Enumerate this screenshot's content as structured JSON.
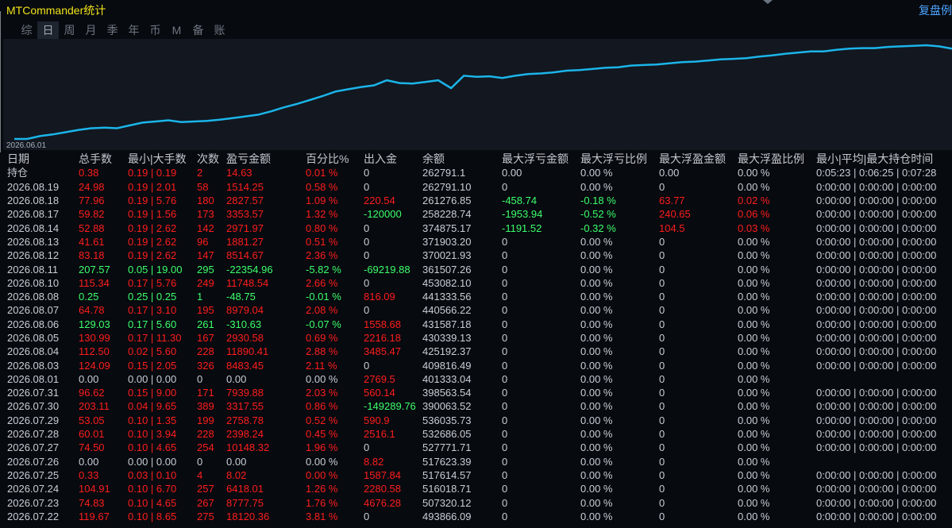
{
  "app": {
    "title": "MTCommander统计",
    "reset_label": "复盘例"
  },
  "tabs": [
    {
      "label": "综",
      "active": false
    },
    {
      "label": "日",
      "active": true
    },
    {
      "label": "周",
      "active": false
    },
    {
      "label": "月",
      "active": false
    },
    {
      "label": "季",
      "active": false
    },
    {
      "label": "年",
      "active": false
    },
    {
      "label": "币",
      "active": false
    },
    {
      "label": "M",
      "active": false
    },
    {
      "label": "备",
      "active": false
    },
    {
      "label": "账户",
      "active": false
    }
  ],
  "chart_data": {
    "type": "line",
    "x_start_label": "2026.06.01",
    "color": "#1bb5e9",
    "values": [
      0,
      0,
      5,
      8,
      12,
      16,
      19,
      20,
      19,
      24,
      29,
      31,
      33,
      30,
      31,
      32,
      34,
      37,
      40,
      43,
      49,
      56,
      62,
      69,
      76,
      84,
      88,
      92,
      95,
      97,
      99,
      98,
      101,
      104,
      109,
      112,
      110,
      111,
      108,
      112,
      115,
      116,
      118,
      121,
      122,
      124,
      126,
      127,
      130,
      131,
      132,
      134,
      136,
      137,
      139,
      141,
      142,
      143,
      146,
      148,
      151,
      153,
      155,
      155,
      158,
      160,
      161,
      161,
      163,
      164,
      165,
      166,
      164,
      160
    ],
    "spikes": [
      {
        "index": 29,
        "value": 104
      },
      {
        "index": 34,
        "value": 90
      }
    ]
  },
  "columns": [
    "日期",
    "总手数",
    "最小|大手数",
    "次数",
    "盈亏金额",
    "百分比%",
    "出入金",
    "余额",
    "最大浮亏金额",
    "最大浮亏比例",
    "最大浮盈金额",
    "最大浮盈比例",
    "最小|平均|最大持仓时间"
  ],
  "holding_row": {
    "label": "持仓",
    "cells": [
      {
        "t": "0.38",
        "c": "red"
      },
      {
        "t": "0.19 | 0.19",
        "c": "red"
      },
      {
        "t": "2",
        "c": "red"
      },
      {
        "t": "14.63",
        "c": "red"
      },
      {
        "t": "0.01 %",
        "c": "red"
      },
      {
        "t": "0",
        "c": "white"
      },
      {
        "t": "262791.1",
        "c": "white"
      },
      {
        "t": "0.00",
        "c": "white"
      },
      {
        "t": "0.00 %",
        "c": "white"
      },
      {
        "t": "0.00",
        "c": "white"
      },
      {
        "t": "0.00 %",
        "c": "white"
      },
      {
        "t": "0:05:23 | 0:06:25 | 0:07:28",
        "c": "white"
      }
    ]
  },
  "rows": [
    {
      "date": "2026.08.19",
      "color": "red",
      "total": "24.98",
      "minmax": "0.19 | 2.01",
      "count": "58",
      "pnl": "1514.25",
      "pct": "0.58 %",
      "flow": "0",
      "flow_c": "white",
      "balance": "262791.10",
      "mfl": "0",
      "mfl_c": "white",
      "mflp": "0.00 %",
      "mflp_c": "white",
      "mfp": "0",
      "mfp_c": "white",
      "mfpp": "0.00 %",
      "mfpp_c": "white",
      "hold": "0:00:00 | 0:00:00 | 0:00:00"
    },
    {
      "date": "2026.08.18",
      "color": "red",
      "total": "77.96",
      "minmax": "0.19 | 5.76",
      "count": "180",
      "pnl": "2827.57",
      "pct": "1.09 %",
      "flow": "220.54",
      "flow_c": "red",
      "balance": "261276.85",
      "mfl": "-458.74",
      "mfl_c": "green",
      "mflp": "-0.18 %",
      "mflp_c": "green",
      "mfp": "63.77",
      "mfp_c": "red",
      "mfpp": "0.02 %",
      "mfpp_c": "red",
      "hold": "0:00:00 | 0:00:00 | 0:00:00"
    },
    {
      "date": "2026.08.17",
      "color": "red",
      "total": "59.82",
      "minmax": "0.19 | 1.56",
      "count": "173",
      "pnl": "3353.57",
      "pct": "1.32 %",
      "flow": "-120000",
      "flow_c": "green",
      "balance": "258228.74",
      "mfl": "-1953.94",
      "mfl_c": "green",
      "mflp": "-0.52 %",
      "mflp_c": "green",
      "mfp": "240.65",
      "mfp_c": "red",
      "mfpp": "0.06 %",
      "mfpp_c": "red",
      "hold": "0:00:00 | 0:00:00 | 0:00:00"
    },
    {
      "date": "2026.08.14",
      "color": "red",
      "total": "52.88",
      "minmax": "0.19 | 2.62",
      "count": "142",
      "pnl": "2971.97",
      "pct": "0.80 %",
      "flow": "0",
      "flow_c": "white",
      "balance": "374875.17",
      "mfl": "-1191.52",
      "mfl_c": "green",
      "mflp": "-0.32 %",
      "mflp_c": "green",
      "mfp": "104.5",
      "mfp_c": "red",
      "mfpp": "0.03 %",
      "mfpp_c": "red",
      "hold": "0:00:00 | 0:00:00 | 0:00:00"
    },
    {
      "date": "2026.08.13",
      "color": "red",
      "total": "41.61",
      "minmax": "0.19 | 2.62",
      "count": "96",
      "pnl": "1881.27",
      "pct": "0.51 %",
      "flow": "0",
      "flow_c": "white",
      "balance": "371903.20",
      "mfl": "0",
      "mfl_c": "white",
      "mflp": "0.00 %",
      "mflp_c": "white",
      "mfp": "0",
      "mfp_c": "white",
      "mfpp": "0.00 %",
      "mfpp_c": "white",
      "hold": "0:00:00 | 0:00:00 | 0:00:00"
    },
    {
      "date": "2026.08.12",
      "color": "red",
      "total": "83.18",
      "minmax": "0.19 | 2.62",
      "count": "147",
      "pnl": "8514.67",
      "pct": "2.36 %",
      "flow": "0",
      "flow_c": "white",
      "balance": "370021.93",
      "mfl": "0",
      "mfl_c": "white",
      "mflp": "0.00 %",
      "mflp_c": "white",
      "mfp": "0",
      "mfp_c": "white",
      "mfpp": "0.00 %",
      "mfpp_c": "white",
      "hold": "0:00:00 | 0:00:00 | 0:00:00"
    },
    {
      "date": "2026.08.11",
      "color": "green",
      "total": "207.57",
      "minmax": "0.05 | 19.00",
      "count": "295",
      "pnl": "-22354.96",
      "pct": "-5.82 %",
      "flow": "-69219.88",
      "flow_c": "green",
      "balance": "361507.26",
      "mfl": "0",
      "mfl_c": "white",
      "mflp": "0.00 %",
      "mflp_c": "white",
      "mfp": "0",
      "mfp_c": "white",
      "mfpp": "0.00 %",
      "mfpp_c": "white",
      "hold": "0:00:00 | 0:00:00 | 0:00:00"
    },
    {
      "date": "2026.08.10",
      "color": "red",
      "total": "115.34",
      "minmax": "0.17 | 5.76",
      "count": "249",
      "pnl": "11748.54",
      "pct": "2.66 %",
      "flow": "0",
      "flow_c": "white",
      "balance": "453082.10",
      "mfl": "0",
      "mfl_c": "white",
      "mflp": "0.00 %",
      "mflp_c": "white",
      "mfp": "0",
      "mfp_c": "white",
      "mfpp": "0.00 %",
      "mfpp_c": "white",
      "hold": "0:00:00 | 0:00:00 | 0:00:00"
    },
    {
      "date": "2026.08.08",
      "color": "green",
      "total": "0.25",
      "minmax": "0.25 | 0.25",
      "count": "1",
      "pnl": "-48.75",
      "pct": "-0.01 %",
      "flow": "816.09",
      "flow_c": "red",
      "balance": "441333.56",
      "mfl": "0",
      "mfl_c": "white",
      "mflp": "0.00 %",
      "mflp_c": "white",
      "mfp": "0",
      "mfp_c": "white",
      "mfpp": "0.00 %",
      "mfpp_c": "white",
      "hold": "0:00:00 | 0:00:00 | 0:00:00"
    },
    {
      "date": "2026.08.07",
      "color": "red",
      "total": "64.78",
      "minmax": "0.17 | 3.10",
      "count": "195",
      "pnl": "8979.04",
      "pct": "2.08 %",
      "flow": "0",
      "flow_c": "white",
      "balance": "440566.22",
      "mfl": "0",
      "mfl_c": "white",
      "mflp": "0.00 %",
      "mflp_c": "white",
      "mfp": "0",
      "mfp_c": "white",
      "mfpp": "0.00 %",
      "mfpp_c": "white",
      "hold": "0:00:00 | 0:00:00 | 0:00:00"
    },
    {
      "date": "2026.08.06",
      "color": "green",
      "total": "129.03",
      "minmax": "0.17 | 5.60",
      "count": "261",
      "pnl": "-310.63",
      "pct": "-0.07 %",
      "flow": "1558.68",
      "flow_c": "red",
      "balance": "431587.18",
      "mfl": "0",
      "mfl_c": "white",
      "mflp": "0.00 %",
      "mflp_c": "white",
      "mfp": "0",
      "mfp_c": "white",
      "mfpp": "0.00 %",
      "mfpp_c": "white",
      "hold": "0:00:00 | 0:00:00 | 0:00:00"
    },
    {
      "date": "2026.08.05",
      "color": "red",
      "total": "130.99",
      "minmax": "0.17 | 11.30",
      "count": "167",
      "pnl": "2930.58",
      "pct": "0.69 %",
      "flow": "2216.18",
      "flow_c": "red",
      "balance": "430339.13",
      "mfl": "0",
      "mfl_c": "white",
      "mflp": "0.00 %",
      "mflp_c": "white",
      "mfp": "0",
      "mfp_c": "white",
      "mfpp": "0.00 %",
      "mfpp_c": "white",
      "hold": "0:00:00 | 0:00:00 | 0:00:00"
    },
    {
      "date": "2026.08.04",
      "color": "red",
      "total": "112.50",
      "minmax": "0.02 | 5.60",
      "count": "228",
      "pnl": "11890.41",
      "pct": "2.88 %",
      "flow": "3485.47",
      "flow_c": "red",
      "balance": "425192.37",
      "mfl": "0",
      "mfl_c": "white",
      "mflp": "0.00 %",
      "mflp_c": "white",
      "mfp": "0",
      "mfp_c": "white",
      "mfpp": "0.00 %",
      "mfpp_c": "white",
      "hold": "0:00:00 | 0:00:00 | 0:00:00"
    },
    {
      "date": "2026.08.03",
      "color": "red",
      "total": "124.09",
      "minmax": "0.15 | 2.05",
      "count": "326",
      "pnl": "8483.45",
      "pct": "2.11 %",
      "flow": "0",
      "flow_c": "white",
      "balance": "409816.49",
      "mfl": "0",
      "mfl_c": "white",
      "mflp": "0.00 %",
      "mflp_c": "white",
      "mfp": "0",
      "mfp_c": "white",
      "mfpp": "0.00 %",
      "mfpp_c": "white",
      "hold": "0:00:00 | 0:00:00 | 0:00:00"
    },
    {
      "date": "2026.08.01",
      "color": "white",
      "total": "0.00",
      "minmax": "0.00 | 0.00",
      "count": "0",
      "pnl": "0.00",
      "pct": "0.00 %",
      "flow": "2769.5",
      "flow_c": "red",
      "balance": "401333.04",
      "mfl": "0",
      "mfl_c": "white",
      "mflp": "0.00 %",
      "mflp_c": "white",
      "mfp": "0",
      "mfp_c": "white",
      "mfpp": "0.00 %",
      "mfpp_c": "white",
      "hold": ""
    },
    {
      "date": "2026.07.31",
      "color": "red",
      "total": "96.62",
      "minmax": "0.15 | 9.00",
      "count": "171",
      "pnl": "7939.88",
      "pct": "2.03 %",
      "flow": "560.14",
      "flow_c": "red",
      "balance": "398563.54",
      "mfl": "0",
      "mfl_c": "white",
      "mflp": "0.00 %",
      "mflp_c": "white",
      "mfp": "0",
      "mfp_c": "white",
      "mfpp": "0.00 %",
      "mfpp_c": "white",
      "hold": "0:00:00 | 0:00:00 | 0:00:00"
    },
    {
      "date": "2026.07.30",
      "color": "red",
      "total": "203.11",
      "minmax": "0.04 | 9.65",
      "count": "389",
      "pnl": "3317.55",
      "pct": "0.86 %",
      "flow": "-149289.76",
      "flow_c": "green",
      "balance": "390063.52",
      "mfl": "0",
      "mfl_c": "white",
      "mflp": "0.00 %",
      "mflp_c": "white",
      "mfp": "0",
      "mfp_c": "white",
      "mfpp": "0.00 %",
      "mfpp_c": "white",
      "hold": "0:00:00 | 0:00:00 | 0:00:00"
    },
    {
      "date": "2026.07.29",
      "color": "red",
      "total": "53.05",
      "minmax": "0.10 | 1.35",
      "count": "199",
      "pnl": "2758.78",
      "pct": "0.52 %",
      "flow": "590.9",
      "flow_c": "red",
      "balance": "536035.73",
      "mfl": "0",
      "mfl_c": "white",
      "mflp": "0.00 %",
      "mflp_c": "white",
      "mfp": "0",
      "mfp_c": "white",
      "mfpp": "0.00 %",
      "mfpp_c": "white",
      "hold": "0:00:00 | 0:00:00 | 0:00:00"
    },
    {
      "date": "2026.07.28",
      "color": "red",
      "total": "60.01",
      "minmax": "0.10 | 3.94",
      "count": "228",
      "pnl": "2398.24",
      "pct": "0.45 %",
      "flow": "2516.1",
      "flow_c": "red",
      "balance": "532686.05",
      "mfl": "0",
      "mfl_c": "white",
      "mflp": "0.00 %",
      "mflp_c": "white",
      "mfp": "0",
      "mfp_c": "white",
      "mfpp": "0.00 %",
      "mfpp_c": "white",
      "hold": "0:00:00 | 0:00:00 | 0:00:00"
    },
    {
      "date": "2026.07.27",
      "color": "red",
      "total": "74.50",
      "minmax": "0.10 | 4.65",
      "count": "254",
      "pnl": "10148.32",
      "pct": "1.96 %",
      "flow": "0",
      "flow_c": "white",
      "balance": "527771.71",
      "mfl": "0",
      "mfl_c": "white",
      "mflp": "0.00 %",
      "mflp_c": "white",
      "mfp": "0",
      "mfp_c": "white",
      "mfpp": "0.00 %",
      "mfpp_c": "white",
      "hold": "0:00:00 | 0:00:00 | 0:00:00"
    },
    {
      "date": "2026.07.26",
      "color": "white",
      "total": "0.00",
      "minmax": "0.00 | 0.00",
      "count": "0",
      "pnl": "0.00",
      "pct": "0.00 %",
      "flow": "8.82",
      "flow_c": "red",
      "balance": "517623.39",
      "mfl": "0",
      "mfl_c": "white",
      "mflp": "0.00 %",
      "mflp_c": "white",
      "mfp": "0",
      "mfp_c": "white",
      "mfpp": "0.00 %",
      "mfpp_c": "white",
      "hold": ""
    },
    {
      "date": "2026.07.25",
      "color": "red",
      "total": "0.33",
      "minmax": "0.03 | 0.10",
      "count": "4",
      "pnl": "8.02",
      "pct": "0.00 %",
      "flow": "1587.84",
      "flow_c": "red",
      "balance": "517614.57",
      "mfl": "0",
      "mfl_c": "white",
      "mflp": "0.00 %",
      "mflp_c": "white",
      "mfp": "0",
      "mfp_c": "white",
      "mfpp": "0.00 %",
      "mfpp_c": "white",
      "hold": "0:00:00 | 0:00:00 | 0:00:00"
    },
    {
      "date": "2026.07.24",
      "color": "red",
      "total": "104.91",
      "minmax": "0.10 | 6.70",
      "count": "257",
      "pnl": "6418.01",
      "pct": "1.26 %",
      "flow": "2280.58",
      "flow_c": "red",
      "balance": "516018.71",
      "mfl": "0",
      "mfl_c": "white",
      "mflp": "0.00 %",
      "mflp_c": "white",
      "mfp": "0",
      "mfp_c": "white",
      "mfpp": "0.00 %",
      "mfpp_c": "white",
      "hold": "0:00:00 | 0:00:00 | 0:00:00"
    },
    {
      "date": "2026.07.23",
      "color": "red",
      "total": "74.83",
      "minmax": "0.10 | 4.65",
      "count": "267",
      "pnl": "8777.75",
      "pct": "1.76 %",
      "flow": "4676.28",
      "flow_c": "red",
      "balance": "507320.12",
      "mfl": "0",
      "mfl_c": "white",
      "mflp": "0.00 %",
      "mflp_c": "white",
      "mfp": "0",
      "mfp_c": "white",
      "mfpp": "0.00 %",
      "mfpp_c": "white",
      "hold": "0:00:00 | 0:00:00 | 0:00:00"
    },
    {
      "date": "2026.07.22",
      "color": "red",
      "total": "119.67",
      "minmax": "0.10 | 8.65",
      "count": "275",
      "pnl": "18120.36",
      "pct": "3.81 %",
      "flow": "0",
      "flow_c": "white",
      "balance": "493866.09",
      "mfl": "0",
      "mfl_c": "white",
      "mflp": "0.00 %",
      "mflp_c": "white",
      "mfp": "0",
      "mfp_c": "white",
      "mfpp": "0.00 %",
      "mfpp_c": "white",
      "hold": "0:00:00 | 0:00:00 | 0:00:00"
    }
  ]
}
